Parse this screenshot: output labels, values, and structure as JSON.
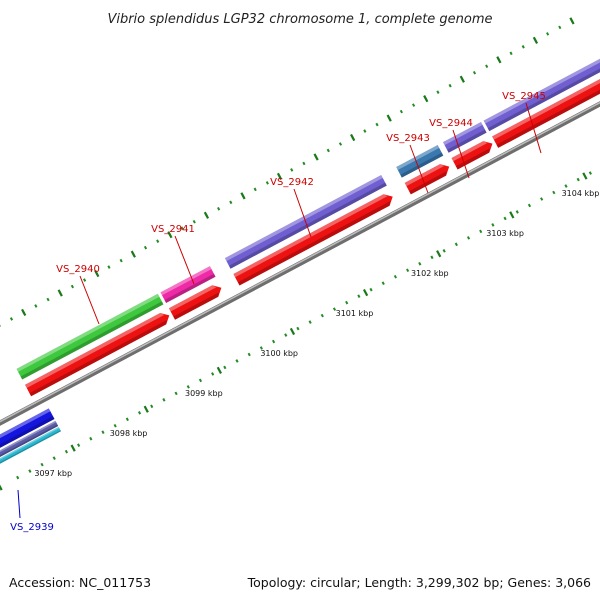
{
  "title": "Vibrio splendidus LGP32 chromosome 1, complete genome",
  "footer": {
    "accession": "Accession: NC_011753",
    "summary": "Topology: circular; Length: 3,299,302 bp; Genes: 3,066"
  },
  "colors": {
    "backbone": "#8a8a8a",
    "cds": "#ee1111",
    "tick_major": "#1a7a1a",
    "tick_minor": "#228b22",
    "label_forward": "#cc0000",
    "label_reverse": "#0000cc"
  },
  "position_scale": [
    {
      "label": "3097 kbp"
    },
    {
      "label": "3098 kbp"
    },
    {
      "label": "3099 kbp"
    },
    {
      "label": "3100 kbp"
    },
    {
      "label": "3101 kbp"
    },
    {
      "label": "3102 kbp"
    },
    {
      "label": "3103 kbp"
    },
    {
      "label": "3104 kbp"
    }
  ],
  "genes": [
    {
      "label": "VS_2939",
      "strand": "reverse",
      "color": "#1515e0"
    },
    {
      "label": "VS_2940",
      "strand": "forward",
      "color": "#3ec83e"
    },
    {
      "label": "VS_2941",
      "strand": "forward",
      "color": "#ee2aa6"
    },
    {
      "label": "VS_2942",
      "strand": "forward",
      "color": "#6f5fd0"
    },
    {
      "label": "VS_2943",
      "strand": "forward",
      "color": "#3a78b0"
    },
    {
      "label": "VS_2944",
      "strand": "forward",
      "color": "#6f5fd0"
    },
    {
      "label": "VS_2945",
      "strand": "forward",
      "color": "#6f5fd0"
    }
  ]
}
